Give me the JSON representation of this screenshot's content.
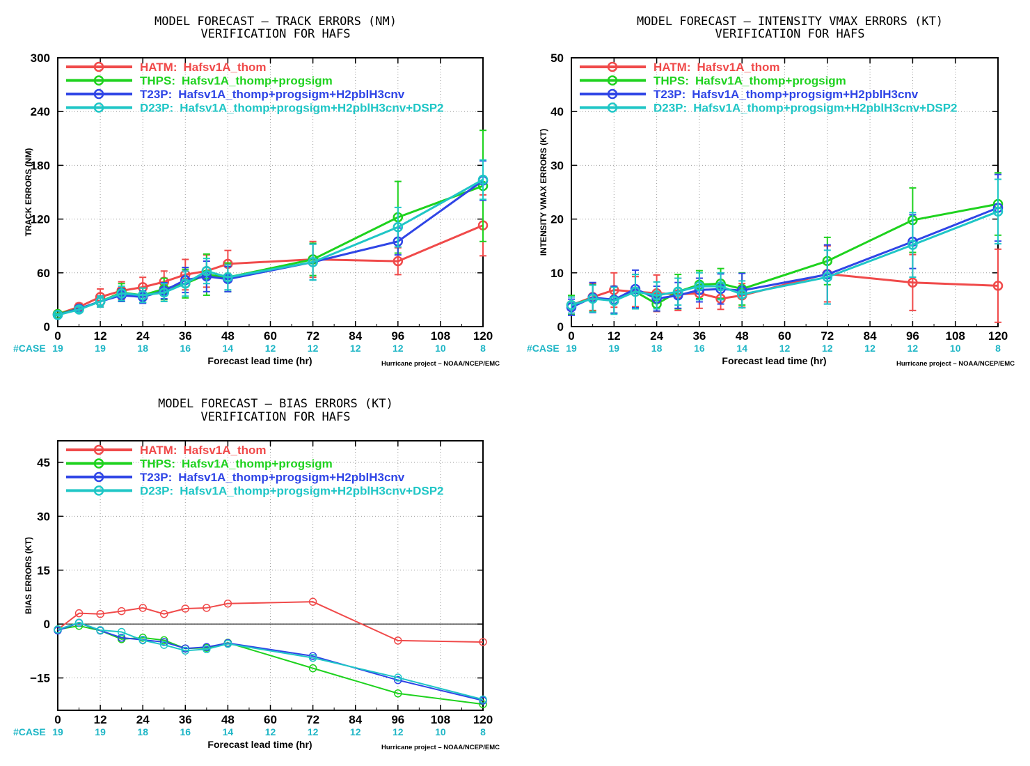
{
  "x_ticks": [
    0,
    12,
    24,
    36,
    48,
    60,
    72,
    84,
    96,
    108,
    120
  ],
  "xlabel": "Forecast lead time (hr)",
  "credit": "Hurricane project – NOAA/NCEP/EMC",
  "case_label": "#CASE",
  "case_counts": [
    19,
    19,
    18,
    16,
    14,
    12,
    12,
    12,
    12,
    10,
    8
  ],
  "legend": [
    {
      "code": "HATM:",
      "label": "Hafsv1A_thom",
      "color": "#f04a4a"
    },
    {
      "code": "THPS:",
      "label": "Hafsv1A_thomp+progsigm",
      "color": "#1ed21e"
    },
    {
      "code": "T23P:",
      "label": "Hafsv1A_thomp+progsigm+H2pblH3cnv",
      "color": "#2f45e6"
    },
    {
      "code": "D23P:",
      "label": "Hafsv1A_thomp+progsigm+H2pblH3cnv+DSP2",
      "color": "#1fc6c6"
    }
  ],
  "chart_data": [
    {
      "type": "line",
      "title": "MODEL FORECAST – TRACK ERRORS (NM)",
      "subtitle": "VERIFICATION FOR HAFS",
      "ylabel": "TRACK ERRORS (NM)",
      "xlim": [
        0,
        120
      ],
      "ylim": [
        0,
        300
      ],
      "y_ticks": [
        0,
        60,
        120,
        180,
        240,
        300
      ],
      "error_bars": true,
      "x": [
        0,
        6,
        12,
        18,
        24,
        30,
        36,
        42,
        48,
        72,
        96,
        120
      ],
      "series": [
        {
          "name": "HATM",
          "values": [
            14,
            22,
            33,
            40,
            44,
            50,
            58,
            62,
            70,
            75,
            73,
            113
          ],
          "err": [
            1,
            4,
            9,
            10,
            11,
            12,
            17,
            18,
            15,
            20,
            15,
            34
          ]
        },
        {
          "name": "THPS",
          "values": [
            14,
            20,
            28,
            38,
            35,
            42,
            48,
            58,
            55,
            75,
            122,
            157
          ],
          "err": [
            1,
            3,
            6,
            10,
            8,
            12,
            16,
            23,
            16,
            18,
            40,
            62
          ]
        },
        {
          "name": "T23P",
          "values": [
            13,
            20,
            28,
            35,
            33,
            40,
            52,
            56,
            53,
            72,
            95,
            163
          ],
          "err": [
            1,
            3,
            6,
            7,
            7,
            9,
            14,
            17,
            14,
            20,
            15,
            22
          ]
        },
        {
          "name": "D23P",
          "values": [
            13,
            19,
            28,
            37,
            35,
            38,
            48,
            62,
            55,
            72,
            111,
            164
          ],
          "err": [
            1,
            3,
            6,
            8,
            8,
            10,
            14,
            14,
            14,
            20,
            22,
            22
          ]
        }
      ]
    },
    {
      "type": "line",
      "title": "MODEL FORECAST – INTENSITY VMAX ERRORS (KT)",
      "subtitle": "VERIFICATION FOR HAFS",
      "ylabel": "INTENSITY VMAX ERRORS (KT)",
      "xlim": [
        0,
        120
      ],
      "ylim": [
        0,
        50
      ],
      "y_ticks": [
        0,
        10,
        20,
        30,
        40,
        50
      ],
      "error_bars": true,
      "x": [
        0,
        6,
        12,
        18,
        24,
        30,
        36,
        42,
        48,
        72,
        96,
        120
      ],
      "series": [
        {
          "name": "HATM",
          "values": [
            4,
            5.5,
            6.8,
            6.5,
            6.2,
            6.0,
            6.2,
            5.2,
            5.8,
            9.8,
            8.2,
            7.6
          ],
          "err": [
            1.5,
            2.5,
            3.2,
            2.8,
            3.4,
            3.0,
            2.8,
            2.0,
            2.2,
            5.2,
            5.2,
            6.8
          ]
        },
        {
          "name": "THPS",
          "values": [
            4,
            5.3,
            5.0,
            6.5,
            4.2,
            6.5,
            7.8,
            8.0,
            7.0,
            12.2,
            19.8,
            22.8
          ],
          "err": [
            1.8,
            2.5,
            2.5,
            3.2,
            1.3,
            3.2,
            2.6,
            2.8,
            3.0,
            4.4,
            6.0,
            5.8
          ]
        },
        {
          "name": "T23P",
          "values": [
            3.6,
            5.4,
            5.0,
            7.0,
            5.2,
            5.8,
            6.8,
            7.0,
            6.7,
            9.7,
            15.8,
            22.1
          ],
          "err": [
            1.5,
            2.8,
            2.5,
            3.5,
            2.3,
            2.4,
            2.2,
            2.8,
            3.2,
            5.5,
            5.0,
            6.2
          ]
        },
        {
          "name": "D23P",
          "values": [
            4,
            5.2,
            4.8,
            6.5,
            5.8,
            6.5,
            7.5,
            7.5,
            6.0,
            9.2,
            15.2,
            21.4
          ],
          "err": [
            1.5,
            2.5,
            2.5,
            3.2,
            2.5,
            2.5,
            2.5,
            2.5,
            2.5,
            5.0,
            6.0,
            6.0
          ]
        }
      ]
    },
    {
      "type": "line",
      "title": "MODEL FORECAST – BIAS ERRORS (KT)",
      "subtitle": "VERIFICATION FOR HAFS",
      "ylabel": "BIAS ERRORS (KT)",
      "xlim": [
        0,
        120
      ],
      "ylim": [
        -24,
        51
      ],
      "y_ticks": [
        -15,
        0,
        15,
        30,
        45
      ],
      "zero_line": true,
      "error_bars": false,
      "x": [
        0,
        6,
        12,
        18,
        24,
        30,
        36,
        42,
        48,
        72,
        96,
        120
      ],
      "series": [
        {
          "name": "HATM",
          "values": [
            -1.5,
            3.0,
            2.8,
            3.6,
            4.5,
            2.8,
            4.3,
            4.5,
            5.7,
            6.2,
            -4.6,
            -5.0
          ]
        },
        {
          "name": "THPS",
          "values": [
            -1.5,
            -0.5,
            -1.8,
            -4.2,
            -3.8,
            -4.5,
            -6.8,
            -6.6,
            -5.2,
            -12.3,
            -19.3,
            -22.3
          ]
        },
        {
          "name": "T23P",
          "values": [
            -1.8,
            0.3,
            -1.8,
            -3.8,
            -4.4,
            -5.0,
            -6.8,
            -6.4,
            -5.3,
            -8.9,
            -15.6,
            -21.3
          ]
        },
        {
          "name": "D23P",
          "values": [
            -1.5,
            0.4,
            -1.7,
            -2.2,
            -4.5,
            -5.8,
            -7.4,
            -7.0,
            -5.5,
            -9.4,
            -14.9,
            -21.0
          ]
        }
      ]
    }
  ]
}
